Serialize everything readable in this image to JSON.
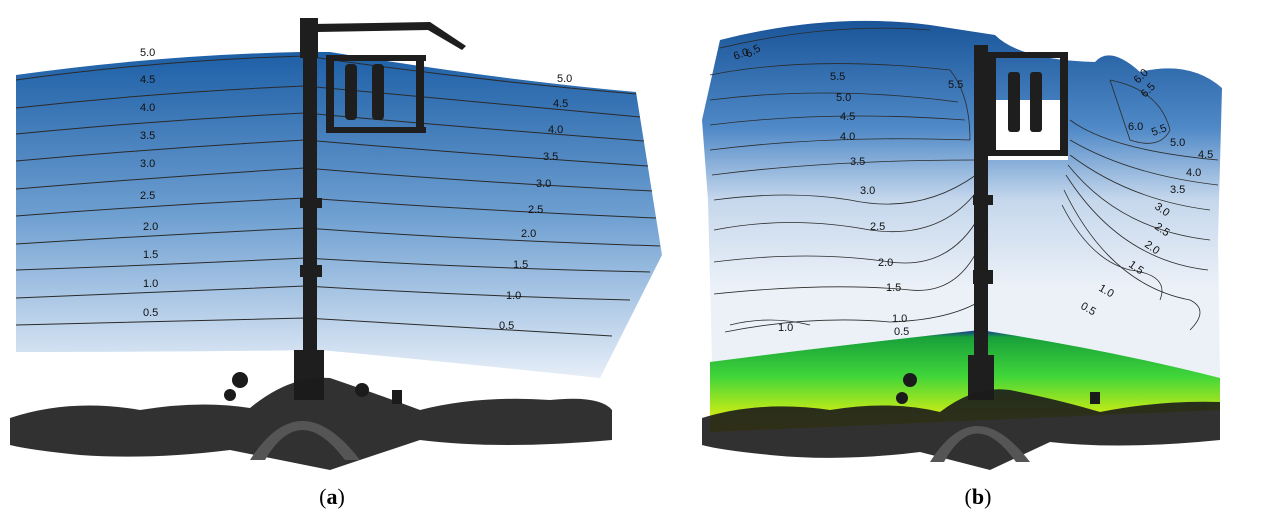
{
  "panel_a": {
    "caption_open": "(",
    "caption_letter": "a",
    "caption_close": ")",
    "contour_labels_left": [
      "5.0",
      "4.5",
      "4.0",
      "3.5",
      "3.0",
      "2.5",
      "2.0",
      "1.5",
      "1.0",
      "0.5"
    ],
    "contour_labels_right": [
      "5.0",
      "4.5",
      "4.0",
      "3.5",
      "3.0",
      "2.5",
      "2.0",
      "1.5",
      "1.0",
      "0.5"
    ]
  },
  "panel_b": {
    "caption_open": "(",
    "caption_letter": "b",
    "caption_close": ")",
    "contour_labels": [
      "6.5",
      "6.0",
      "5.5",
      "5.5",
      "5.0",
      "4.5",
      "4.0",
      "3.5",
      "3.0",
      "2.5",
      "2.0",
      "1.5",
      "1.0",
      "1.0",
      "0.5",
      "6.0",
      "6.5",
      "6.0",
      "5.5",
      "5.0",
      "4.5",
      "4.0",
      "3.5",
      "3.0",
      "2.5",
      "2.0",
      "1.5",
      "1.0",
      "0.5"
    ]
  },
  "colors": {
    "water_deep": "#1d5fa6",
    "water_shallow": "#e8eef7",
    "structure": "#1e1e1e",
    "beach_yellow": "#f0e000",
    "beach_green": "#2bd12b",
    "shoreline": "#1a2fa0"
  }
}
